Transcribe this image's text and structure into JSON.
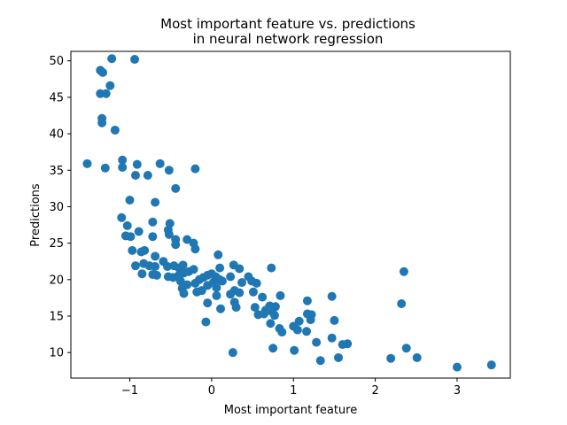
{
  "chart_data": {
    "type": "scatter",
    "title_line1": "Most important feature vs. predictions",
    "title_line2": "in neural network regression",
    "xlabel": "Most important feature",
    "ylabel": "Predictions",
    "xlim": [
      -1.72,
      3.65
    ],
    "ylim": [
      6.5,
      51.3
    ],
    "xticks": [
      -1,
      0,
      1,
      2,
      3
    ],
    "xtick_labels": [
      "−1",
      "0",
      "1",
      "2",
      "3"
    ],
    "yticks": [
      10,
      15,
      20,
      25,
      30,
      35,
      40,
      45,
      50
    ],
    "ytick_labels": [
      "10",
      "15",
      "20",
      "25",
      "30",
      "35",
      "40",
      "45",
      "50"
    ],
    "grid": false,
    "legend": "none",
    "marker_color": "#1f77b4",
    "series": [
      {
        "points": [
          [
            -1.52,
            35.9
          ],
          [
            -1.36,
            48.7
          ],
          [
            -1.33,
            48.4
          ],
          [
            -1.36,
            45.5
          ],
          [
            -1.29,
            45.5
          ],
          [
            -1.34,
            42.1
          ],
          [
            -1.34,
            41.5
          ],
          [
            -1.22,
            50.3
          ],
          [
            -0.94,
            50.2
          ],
          [
            -1.24,
            46.6
          ],
          [
            -1.18,
            40.5
          ],
          [
            -1.3,
            35.3
          ],
          [
            -1.09,
            36.4
          ],
          [
            -1.09,
            35.4
          ],
          [
            -0.91,
            35.8
          ],
          [
            -0.93,
            34.3
          ],
          [
            -0.78,
            34.3
          ],
          [
            -0.63,
            35.9
          ],
          [
            -0.52,
            35.0
          ],
          [
            -0.2,
            35.2
          ],
          [
            -0.44,
            32.5
          ],
          [
            -1.0,
            30.9
          ],
          [
            -0.69,
            30.6
          ],
          [
            -1.1,
            28.5
          ],
          [
            -1.03,
            27.4
          ],
          [
            -0.72,
            27.9
          ],
          [
            -1.05,
            26.0
          ],
          [
            -0.99,
            25.9
          ],
          [
            -0.89,
            26.6
          ],
          [
            -0.72,
            25.9
          ],
          [
            -0.51,
            27.7
          ],
          [
            -0.53,
            26.8
          ],
          [
            -0.52,
            26.2
          ],
          [
            -0.44,
            25.5
          ],
          [
            -0.3,
            25.5
          ],
          [
            -0.44,
            24.8
          ],
          [
            -0.22,
            25.0
          ],
          [
            -0.2,
            24.2
          ],
          [
            -0.97,
            24.0
          ],
          [
            -0.86,
            23.8
          ],
          [
            -0.82,
            24.0
          ],
          [
            -0.69,
            23.2
          ],
          [
            -0.59,
            22.5
          ],
          [
            -0.83,
            22.2
          ],
          [
            -0.76,
            21.9
          ],
          [
            -0.69,
            21.8
          ],
          [
            -0.54,
            21.8
          ],
          [
            -0.46,
            21.9
          ],
          [
            -0.4,
            21.6
          ],
          [
            -0.35,
            22.0
          ],
          [
            -0.93,
            21.9
          ],
          [
            -0.85,
            20.8
          ],
          [
            -0.72,
            20.7
          ],
          [
            -0.67,
            20.6
          ],
          [
            -0.53,
            20.4
          ],
          [
            -0.47,
            20.3
          ],
          [
            -0.4,
            20.6
          ],
          [
            -0.34,
            20.9
          ],
          [
            -0.28,
            21.1
          ],
          [
            -0.22,
            21.4
          ],
          [
            -0.38,
            19.8
          ],
          [
            -0.3,
            19.3
          ],
          [
            -0.2,
            19.5
          ],
          [
            -0.15,
            20.0
          ],
          [
            -0.1,
            20.3
          ],
          [
            -0.05,
            20.6
          ],
          [
            0.0,
            20.8
          ],
          [
            0.05,
            20.4
          ],
          [
            0.1,
            20.0
          ],
          [
            -0.36,
            18.8
          ],
          [
            -0.34,
            18.1
          ],
          [
            -0.18,
            18.3
          ],
          [
            -0.12,
            18.5
          ],
          [
            -0.05,
            19.2
          ],
          [
            0.02,
            19.6
          ],
          [
            0.06,
            18.9
          ],
          [
            0.08,
            23.4
          ],
          [
            0.1,
            21.6
          ],
          [
            0.13,
            19.8
          ],
          [
            0.23,
            20.4
          ],
          [
            -0.05,
            16.8
          ],
          [
            0.06,
            17.8
          ],
          [
            0.11,
            16.0
          ],
          [
            -0.07,
            14.2
          ],
          [
            0.23,
            18.0
          ],
          [
            0.28,
            18.5
          ],
          [
            0.34,
            18.2
          ],
          [
            0.37,
            19.6
          ],
          [
            0.28,
            16.9
          ],
          [
            0.3,
            16.2
          ],
          [
            0.27,
            22.0
          ],
          [
            0.34,
            21.5
          ],
          [
            0.45,
            20.4
          ],
          [
            0.49,
            19.8
          ],
          [
            0.55,
            19.5
          ],
          [
            0.51,
            18.3
          ],
          [
            0.62,
            17.6
          ],
          [
            0.71,
            16.4
          ],
          [
            0.73,
            21.6
          ],
          [
            0.78,
            16.3
          ],
          [
            0.84,
            17.8
          ],
          [
            0.53,
            16.2
          ],
          [
            0.57,
            15.2
          ],
          [
            0.64,
            15.3
          ],
          [
            0.66,
            15.8
          ],
          [
            0.7,
            15.8
          ],
          [
            0.74,
            15.6
          ],
          [
            0.77,
            15.1
          ],
          [
            0.72,
            14.0
          ],
          [
            0.83,
            13.3
          ],
          [
            0.86,
            12.8
          ],
          [
            0.75,
            10.6
          ],
          [
            1.0,
            13.6
          ],
          [
            1.05,
            13.1
          ],
          [
            1.07,
            14.3
          ],
          [
            1.17,
            17.1
          ],
          [
            1.17,
            15.3
          ],
          [
            1.21,
            14.5
          ],
          [
            1.16,
            12.9
          ],
          [
            1.22,
            15.2
          ],
          [
            1.28,
            11.4
          ],
          [
            1.01,
            10.3
          ],
          [
            1.33,
            8.9
          ],
          [
            1.47,
            17.7
          ],
          [
            1.5,
            14.4
          ],
          [
            1.47,
            12.0
          ],
          [
            1.6,
            11.1
          ],
          [
            1.66,
            11.2
          ],
          [
            1.55,
            9.3
          ],
          [
            0.26,
            10.0
          ],
          [
            2.19,
            9.2
          ],
          [
            2.32,
            16.7
          ],
          [
            2.35,
            21.1
          ],
          [
            2.38,
            10.6
          ],
          [
            2.51,
            9.3
          ],
          [
            3.0,
            8.0
          ],
          [
            3.42,
            8.3
          ]
        ]
      }
    ]
  }
}
